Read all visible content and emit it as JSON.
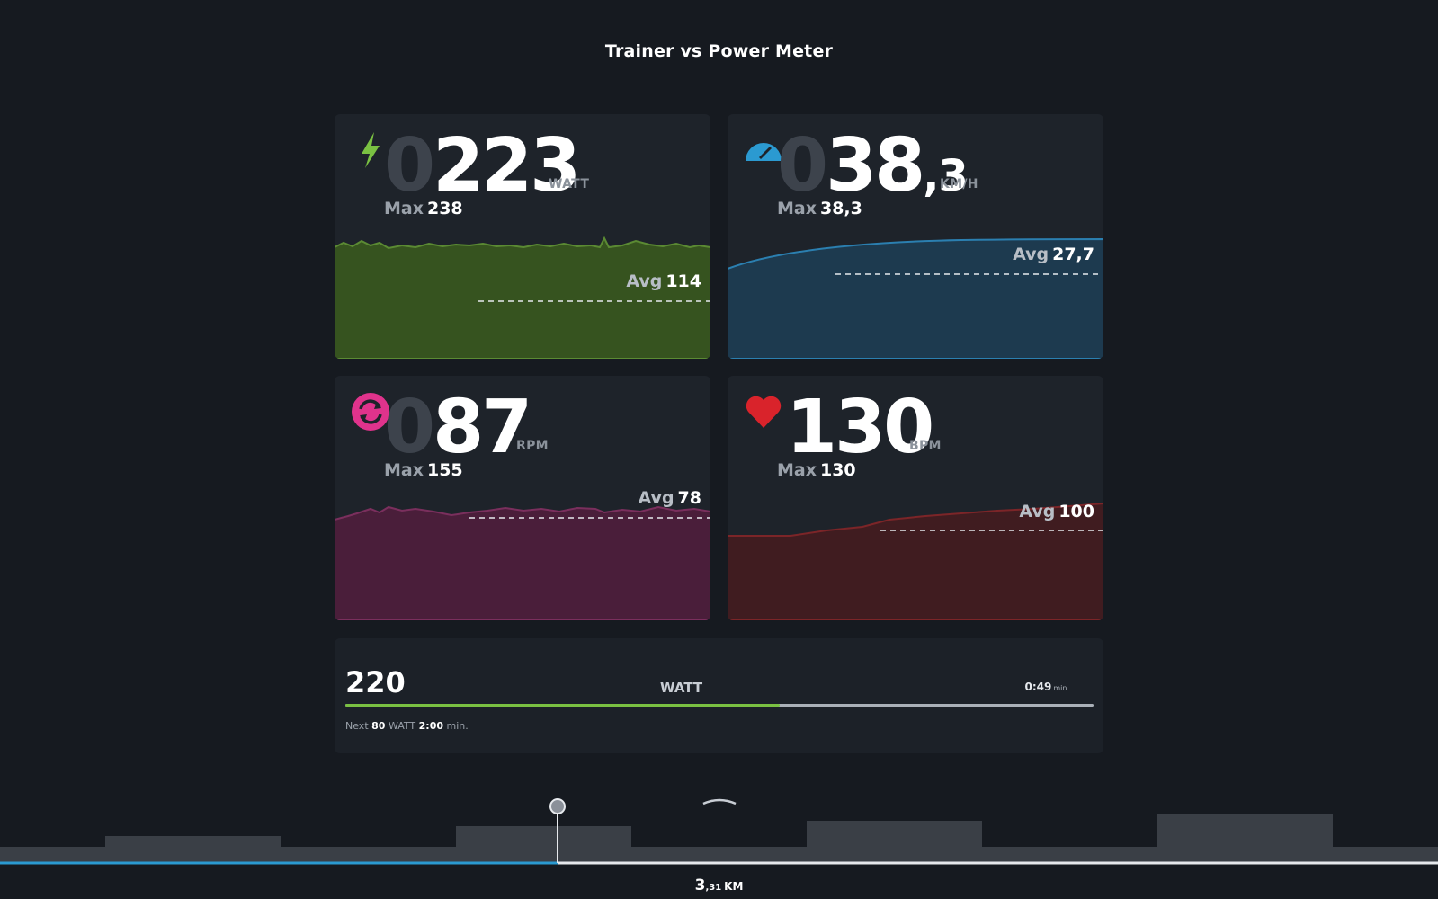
{
  "title": "Trainer vs Power Meter",
  "colors": {
    "power": "#7ac142",
    "speed": "#2b9ad1",
    "cadence": "#e0338c",
    "heart": "#d9232b"
  },
  "power": {
    "icon": "lightning-icon",
    "lead_digit": "0",
    "value": "223",
    "unit": "WATT",
    "max_label": "Max",
    "max_value": "238",
    "avg_label": "Avg",
    "avg_value": "114"
  },
  "speed": {
    "icon": "speedometer-icon",
    "lead_digit": "0",
    "value": "38",
    "decimal": ",3",
    "unit": "KM/H",
    "max_label": "Max",
    "max_value": "38,3",
    "avg_label": "Avg",
    "avg_value": "27,7"
  },
  "cadence": {
    "icon": "cadence-icon",
    "lead_digit": "0",
    "value": "87",
    "unit": "RPM",
    "max_label": "Max",
    "max_value": "155",
    "avg_label": "Avg",
    "avg_value": "78"
  },
  "heart_rate": {
    "icon": "heart-icon",
    "value": "130",
    "unit": "BPM",
    "max_label": "Max",
    "max_value": "130",
    "avg_label": "Avg",
    "avg_value": "100"
  },
  "workout": {
    "target_watt": "220",
    "unit": "WATT",
    "timer": "0:49",
    "timer_unit": "min.",
    "progress": 0.58,
    "next_label": "Next",
    "next_watt": "80",
    "next_unit": "WATT",
    "next_duration": "2:00",
    "next_duration_unit": "min."
  },
  "distance": {
    "integer": "3",
    "decimal": ",31",
    "unit": "KM"
  }
}
